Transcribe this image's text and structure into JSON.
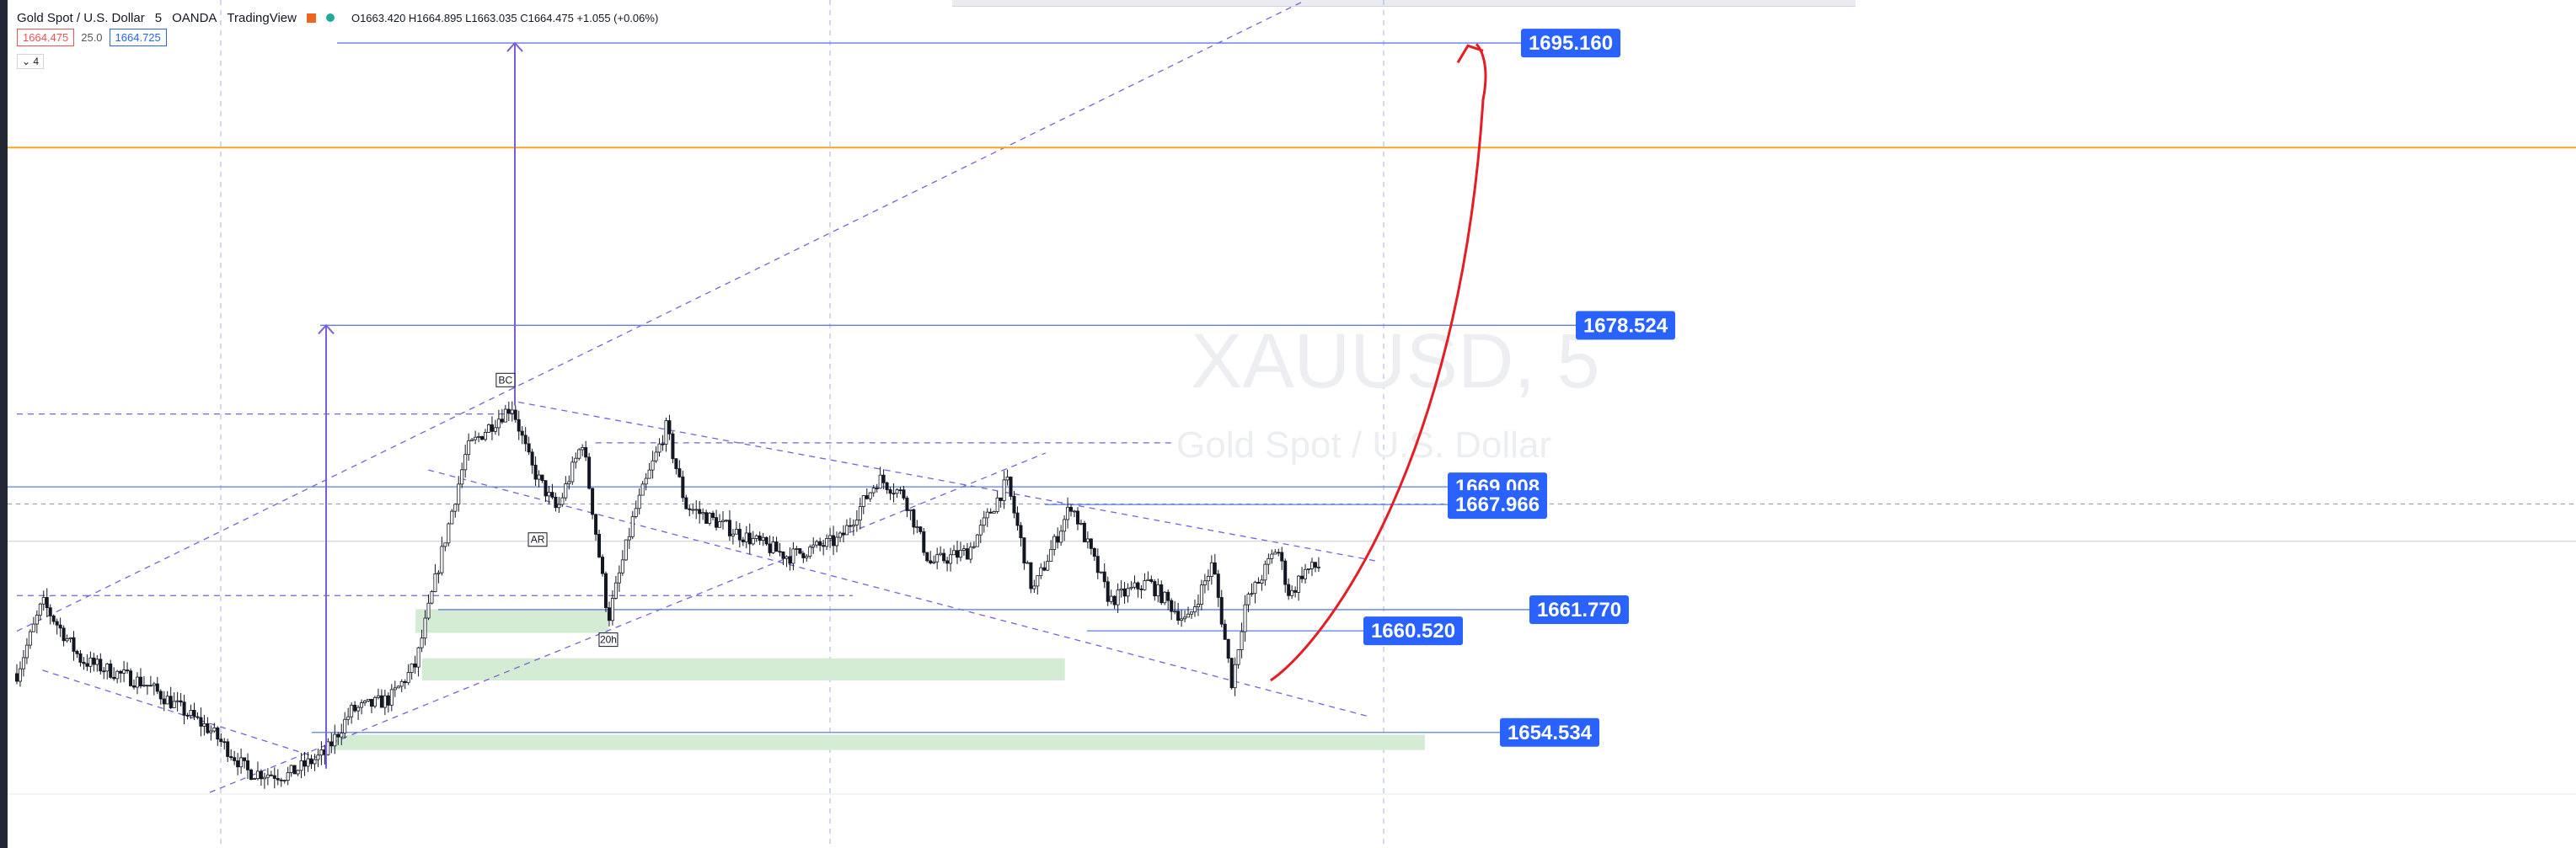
{
  "header": {
    "symbol_name": "Gold Spot / U.S. Dollar",
    "interval": "5",
    "broker": "OANDA",
    "platform": "TradingView",
    "ohlc": "O1663.420 H1664.895 L1663.035 C1664.475 +1.055 (+0.06%)"
  },
  "price_box": {
    "bid": "1664.475",
    "spread": "25.0",
    "ask": "1664.725"
  },
  "collapse_label": "⌄ 4",
  "colors": {
    "candle": "#131722",
    "level_line": "#5b7fe8",
    "label_bg": "#2962ff",
    "zone": "#d4ecd4",
    "orange_line": "#f5a623",
    "arrow": "#e31e24",
    "channel": "#7b5fd6"
  },
  "chart_data": {
    "type": "candlestick",
    "symbol": "XAUUSD, 5",
    "description": "Gold Spot / U.S. Dollar",
    "ylim": [
      1650.9,
      1697.0
    ],
    "x_count": 390,
    "price_levels": [
      {
        "label": "1695.160",
        "value": 1695.16
      },
      {
        "label": "1678.524",
        "value": 1678.524
      },
      {
        "label": "1669.008",
        "value": 1669.008
      },
      {
        "label": "1667.966",
        "value": 1667.966
      },
      {
        "label": "1661.770",
        "value": 1661.77
      },
      {
        "label": "1660.520",
        "value": 1660.52
      },
      {
        "label": "1654.534",
        "value": 1654.534
      }
    ],
    "orange_level": 1689.0,
    "dotted_levels": [
      1673.3,
      1668.0,
      1662.6
    ],
    "gray_level": 1665.8,
    "annotations": [
      {
        "text": "BC",
        "x": 76,
        "value": 1675.3
      },
      {
        "text": "AR",
        "x": 81,
        "value": 1665.9
      },
      {
        "text": "20h",
        "x": 92,
        "value": 1660.0
      }
    ],
    "zones": [
      {
        "x1": 62,
        "x2": 92,
        "y_top": 1661.8,
        "y_bottom": 1660.4
      },
      {
        "x1": 63,
        "x2": 163,
        "y_top": 1658.9,
        "y_bottom": 1657.6
      },
      {
        "x1": 49,
        "x2": 219,
        "y_top": 1654.4,
        "y_bottom": 1653.5
      }
    ],
    "key_points": [
      [
        0,
        1658
      ],
      [
        4,
        1662.2
      ],
      [
        10,
        1658.8
      ],
      [
        20,
        1657.4
      ],
      [
        30,
        1654.7
      ],
      [
        36,
        1652.2
      ],
      [
        42,
        1652.0
      ],
      [
        48,
        1653.3
      ],
      [
        52,
        1655.8
      ],
      [
        58,
        1656.5
      ],
      [
        62,
        1658.5
      ],
      [
        66,
        1665.0
      ],
      [
        70,
        1671.2
      ],
      [
        73,
        1672.4
      ],
      [
        77,
        1673.8
      ],
      [
        80,
        1670.2
      ],
      [
        84,
        1667.6
      ],
      [
        88,
        1671.7
      ],
      [
        92,
        1661.2
      ],
      [
        96,
        1667.4
      ],
      [
        101,
        1672.5
      ],
      [
        104,
        1667.9
      ],
      [
        112,
        1666.3
      ],
      [
        120,
        1664.9
      ],
      [
        128,
        1665.9
      ],
      [
        134,
        1669.5
      ],
      [
        138,
        1668.5
      ],
      [
        142,
        1664.5
      ],
      [
        148,
        1665.2
      ],
      [
        154,
        1669.3
      ],
      [
        158,
        1662.8
      ],
      [
        164,
        1668.0
      ],
      [
        170,
        1662.3
      ],
      [
        176,
        1663.4
      ],
      [
        182,
        1661.0
      ],
      [
        186,
        1664.5
      ],
      [
        189,
        1657.4
      ],
      [
        191,
        1662.0
      ],
      [
        194,
        1664.0
      ],
      [
        196,
        1665.5
      ],
      [
        198,
        1662.5
      ],
      [
        200,
        1664.0
      ],
      [
        203,
        1664.4
      ]
    ]
  }
}
